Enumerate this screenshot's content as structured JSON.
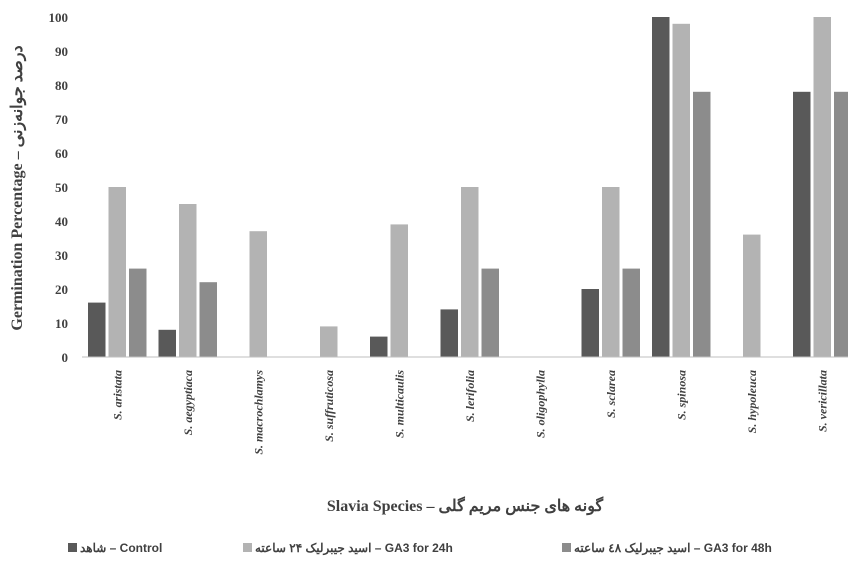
{
  "chart_data": {
    "type": "bar",
    "categories": [
      "S. aristata",
      "S. aegyptiaca",
      "S. macrochlamys",
      "S. suffruticosa",
      "S. multicaulis",
      "S. lerifolia",
      "S. oligophylla",
      "S. sclarea",
      "S. spinosa",
      "S. hypoleuca",
      "S. vericillata"
    ],
    "series": [
      {
        "name": "شاهد – Control",
        "color": "#595959",
        "values": [
          16,
          8,
          0,
          0,
          6,
          14,
          0,
          20,
          100,
          0,
          78
        ]
      },
      {
        "name": "اسید جیبرلیک ۲۴ ساعته – GA3 for 24h",
        "color": "#b3b3b3",
        "values": [
          50,
          45,
          37,
          9,
          39,
          50,
          0,
          50,
          98,
          36,
          100
        ]
      },
      {
        "name": "اسید جیبرلیک ٤٨ ساعته – GA3 for 48h",
        "color": "#8c8c8c",
        "values": [
          26,
          22,
          0,
          0,
          0,
          26,
          0,
          26,
          78,
          0,
          78
        ]
      }
    ],
    "ylim": [
      0,
      100
    ],
    "yticks": [
      0,
      10,
      20,
      30,
      40,
      50,
      60,
      70,
      80,
      90,
      100
    ],
    "ylabel": "Germination Percentage – درصد جوانه‌زنی",
    "xlabel": "Slavia Species – گونه های جنس مریم گلی",
    "grid": false,
    "legend_position": "bottom"
  }
}
